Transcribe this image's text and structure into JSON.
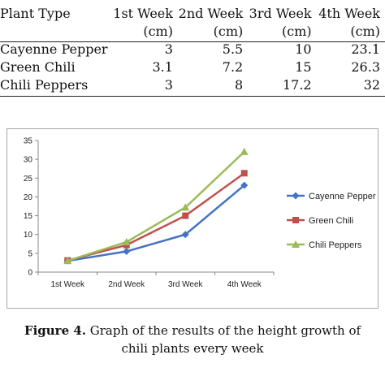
{
  "table": {
    "header_top": [
      "Plant Type",
      "1st Week",
      "2nd Week",
      "3rd Week",
      "4th Week"
    ],
    "header_unit": [
      "",
      "(cm)",
      "(cm)",
      "(cm)",
      "(cm)"
    ],
    "rows": [
      [
        "Cayenne Pepper",
        "3",
        "5.5",
        "10",
        "23.1"
      ],
      [
        "Green Chili",
        "3.1",
        "7.2",
        "15",
        "26.3"
      ],
      [
        "Chili Peppers",
        "3",
        "8",
        "17.2",
        "32"
      ]
    ]
  },
  "caption": {
    "label": "Figure 4.",
    "text": " Graph of the results of the height growth of chili plants every week"
  },
  "chart_data": {
    "type": "line",
    "categories": [
      "1st Week",
      "2nd Week",
      "3rd Week",
      "4th Week"
    ],
    "series": [
      {
        "name": "Cayenne Pepper",
        "values": [
          3,
          5.5,
          10,
          23.1
        ],
        "color": "#4472C4",
        "marker": "diamond"
      },
      {
        "name": "Green Chili",
        "values": [
          3.1,
          7.2,
          15,
          26.3
        ],
        "color": "#C0504D",
        "marker": "square"
      },
      {
        "name": "Chili Peppers",
        "values": [
          3,
          8,
          17.2,
          32
        ],
        "color": "#9BBB59",
        "marker": "triangle"
      }
    ],
    "ylim": [
      0,
      35
    ],
    "yticks": [
      0,
      5,
      10,
      15,
      20,
      25,
      30,
      35
    ],
    "grid": false,
    "legend": "right"
  }
}
